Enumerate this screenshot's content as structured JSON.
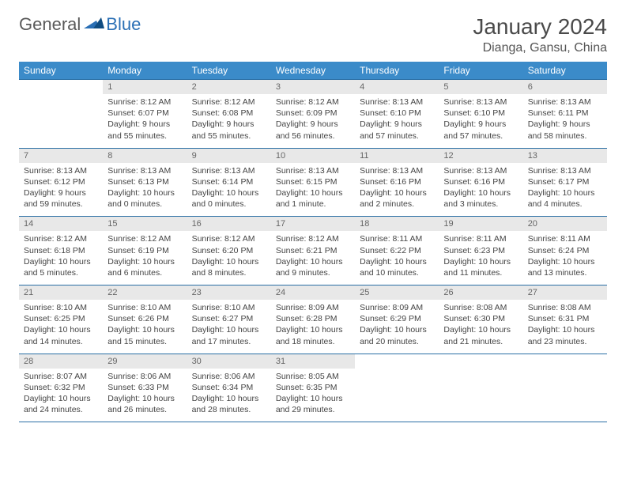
{
  "brand": {
    "part1": "General",
    "part2": "Blue"
  },
  "title": "January 2024",
  "location": "Dianga, Gansu, China",
  "colors": {
    "header_bg": "#3b8bc9",
    "header_text": "#ffffff",
    "rule": "#2a6fa5",
    "daynum_bg": "#e8e8e8",
    "daynum_text": "#666666",
    "body_text": "#444444",
    "brand_gray": "#5a5a5a",
    "brand_blue": "#2a6fb5"
  },
  "weekdays": [
    "Sunday",
    "Monday",
    "Tuesday",
    "Wednesday",
    "Thursday",
    "Friday",
    "Saturday"
  ],
  "weeks": [
    [
      {
        "n": "",
        "sr": "",
        "ss": "",
        "dl": "",
        "empty": true
      },
      {
        "n": "1",
        "sr": "Sunrise: 8:12 AM",
        "ss": "Sunset: 6:07 PM",
        "dl": "Daylight: 9 hours and 55 minutes."
      },
      {
        "n": "2",
        "sr": "Sunrise: 8:12 AM",
        "ss": "Sunset: 6:08 PM",
        "dl": "Daylight: 9 hours and 55 minutes."
      },
      {
        "n": "3",
        "sr": "Sunrise: 8:12 AM",
        "ss": "Sunset: 6:09 PM",
        "dl": "Daylight: 9 hours and 56 minutes."
      },
      {
        "n": "4",
        "sr": "Sunrise: 8:13 AM",
        "ss": "Sunset: 6:10 PM",
        "dl": "Daylight: 9 hours and 57 minutes."
      },
      {
        "n": "5",
        "sr": "Sunrise: 8:13 AM",
        "ss": "Sunset: 6:10 PM",
        "dl": "Daylight: 9 hours and 57 minutes."
      },
      {
        "n": "6",
        "sr": "Sunrise: 8:13 AM",
        "ss": "Sunset: 6:11 PM",
        "dl": "Daylight: 9 hours and 58 minutes."
      }
    ],
    [
      {
        "n": "7",
        "sr": "Sunrise: 8:13 AM",
        "ss": "Sunset: 6:12 PM",
        "dl": "Daylight: 9 hours and 59 minutes."
      },
      {
        "n": "8",
        "sr": "Sunrise: 8:13 AM",
        "ss": "Sunset: 6:13 PM",
        "dl": "Daylight: 10 hours and 0 minutes."
      },
      {
        "n": "9",
        "sr": "Sunrise: 8:13 AM",
        "ss": "Sunset: 6:14 PM",
        "dl": "Daylight: 10 hours and 0 minutes."
      },
      {
        "n": "10",
        "sr": "Sunrise: 8:13 AM",
        "ss": "Sunset: 6:15 PM",
        "dl": "Daylight: 10 hours and 1 minute."
      },
      {
        "n": "11",
        "sr": "Sunrise: 8:13 AM",
        "ss": "Sunset: 6:16 PM",
        "dl": "Daylight: 10 hours and 2 minutes."
      },
      {
        "n": "12",
        "sr": "Sunrise: 8:13 AM",
        "ss": "Sunset: 6:16 PM",
        "dl": "Daylight: 10 hours and 3 minutes."
      },
      {
        "n": "13",
        "sr": "Sunrise: 8:13 AM",
        "ss": "Sunset: 6:17 PM",
        "dl": "Daylight: 10 hours and 4 minutes."
      }
    ],
    [
      {
        "n": "14",
        "sr": "Sunrise: 8:12 AM",
        "ss": "Sunset: 6:18 PM",
        "dl": "Daylight: 10 hours and 5 minutes."
      },
      {
        "n": "15",
        "sr": "Sunrise: 8:12 AM",
        "ss": "Sunset: 6:19 PM",
        "dl": "Daylight: 10 hours and 6 minutes."
      },
      {
        "n": "16",
        "sr": "Sunrise: 8:12 AM",
        "ss": "Sunset: 6:20 PM",
        "dl": "Daylight: 10 hours and 8 minutes."
      },
      {
        "n": "17",
        "sr": "Sunrise: 8:12 AM",
        "ss": "Sunset: 6:21 PM",
        "dl": "Daylight: 10 hours and 9 minutes."
      },
      {
        "n": "18",
        "sr": "Sunrise: 8:11 AM",
        "ss": "Sunset: 6:22 PM",
        "dl": "Daylight: 10 hours and 10 minutes."
      },
      {
        "n": "19",
        "sr": "Sunrise: 8:11 AM",
        "ss": "Sunset: 6:23 PM",
        "dl": "Daylight: 10 hours and 11 minutes."
      },
      {
        "n": "20",
        "sr": "Sunrise: 8:11 AM",
        "ss": "Sunset: 6:24 PM",
        "dl": "Daylight: 10 hours and 13 minutes."
      }
    ],
    [
      {
        "n": "21",
        "sr": "Sunrise: 8:10 AM",
        "ss": "Sunset: 6:25 PM",
        "dl": "Daylight: 10 hours and 14 minutes."
      },
      {
        "n": "22",
        "sr": "Sunrise: 8:10 AM",
        "ss": "Sunset: 6:26 PM",
        "dl": "Daylight: 10 hours and 15 minutes."
      },
      {
        "n": "23",
        "sr": "Sunrise: 8:10 AM",
        "ss": "Sunset: 6:27 PM",
        "dl": "Daylight: 10 hours and 17 minutes."
      },
      {
        "n": "24",
        "sr": "Sunrise: 8:09 AM",
        "ss": "Sunset: 6:28 PM",
        "dl": "Daylight: 10 hours and 18 minutes."
      },
      {
        "n": "25",
        "sr": "Sunrise: 8:09 AM",
        "ss": "Sunset: 6:29 PM",
        "dl": "Daylight: 10 hours and 20 minutes."
      },
      {
        "n": "26",
        "sr": "Sunrise: 8:08 AM",
        "ss": "Sunset: 6:30 PM",
        "dl": "Daylight: 10 hours and 21 minutes."
      },
      {
        "n": "27",
        "sr": "Sunrise: 8:08 AM",
        "ss": "Sunset: 6:31 PM",
        "dl": "Daylight: 10 hours and 23 minutes."
      }
    ],
    [
      {
        "n": "28",
        "sr": "Sunrise: 8:07 AM",
        "ss": "Sunset: 6:32 PM",
        "dl": "Daylight: 10 hours and 24 minutes."
      },
      {
        "n": "29",
        "sr": "Sunrise: 8:06 AM",
        "ss": "Sunset: 6:33 PM",
        "dl": "Daylight: 10 hours and 26 minutes."
      },
      {
        "n": "30",
        "sr": "Sunrise: 8:06 AM",
        "ss": "Sunset: 6:34 PM",
        "dl": "Daylight: 10 hours and 28 minutes."
      },
      {
        "n": "31",
        "sr": "Sunrise: 8:05 AM",
        "ss": "Sunset: 6:35 PM",
        "dl": "Daylight: 10 hours and 29 minutes."
      },
      {
        "n": "",
        "sr": "",
        "ss": "",
        "dl": "",
        "empty": true
      },
      {
        "n": "",
        "sr": "",
        "ss": "",
        "dl": "",
        "empty": true
      },
      {
        "n": "",
        "sr": "",
        "ss": "",
        "dl": "",
        "empty": true
      }
    ]
  ]
}
